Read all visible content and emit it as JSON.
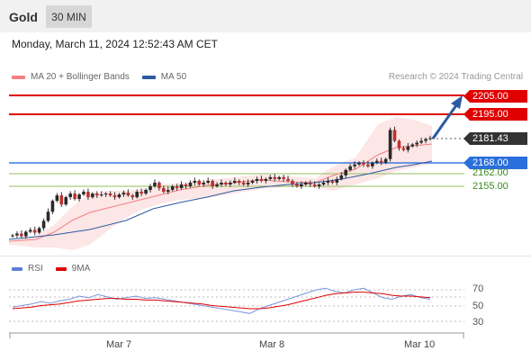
{
  "header": {
    "title": "Gold",
    "timeframe": "30 MIN"
  },
  "datetime": "Monday, March 11, 2024 12:52:43 AM CET",
  "legend": {
    "ma20_label": "MA 20 + Bollinger Bands",
    "ma20_color": "#f08080",
    "ma50_label": "MA 50",
    "ma50_color": "#2c5aa0",
    "credit": "Research © 2024 Trading Central"
  },
  "price_levels": {
    "resistance2": "2205.00",
    "resistance1": "2195.00",
    "current": "2181.43",
    "pivot": "2168.00",
    "support1": "2162.00",
    "support2": "2155.00"
  },
  "rsi_legend": {
    "rsi_label": "RSI",
    "rsi_color": "#5b7fd6",
    "ma_label": "9MA",
    "ma_color": "#e00000"
  },
  "rsi_levels": {
    "high": "70",
    "mid": "50",
    "low": "30"
  },
  "xaxis": {
    "d1": "Mar 7",
    "d2": "Mar 8",
    "d3": "Mar 10"
  },
  "chart_data": {
    "type": "candlestick",
    "price_axis_labels": [
      2205.0,
      2195.0,
      2181.43,
      2168.0,
      2162.0,
      2155.0
    ],
    "close_path": [
      2128.0,
      2129.0,
      2127.5,
      2130.0,
      2131.0,
      2129.5,
      2132.0,
      2136.0,
      2141.0,
      2147.0,
      2150.0,
      2145.0,
      2149.0,
      2151.0,
      2148.0,
      2150.5,
      2152.0,
      2149.0,
      2151.0,
      2150.0,
      2150.5,
      2151.0,
      2150.0,
      2149.0,
      2150.5,
      2151.5,
      2150.0,
      2149.0,
      2152.0,
      2151.0,
      2153.0,
      2155.0,
      2157.0,
      2154.0,
      2152.0,
      2153.0,
      2155.0,
      2154.0,
      2156.0,
      2155.0,
      2157.0,
      2158.0,
      2156.0,
      2157.0,
      2158.0,
      2155.0,
      2156.0,
      2157.0,
      2156.0,
      2157.0,
      2158.0,
      2157.0,
      2156.0,
      2157.0,
      2158.0,
      2159.0,
      2158.0,
      2159.0,
      2160.0,
      2159.0,
      2160.0,
      2159.0,
      2158.0,
      2156.0,
      2155.0,
      2156.0,
      2157.0,
      2156.0,
      2155.0,
      2156.0,
      2157.0,
      2158.0,
      2157.0,
      2159.0,
      2161.0,
      2164.0,
      2166.0,
      2167.0,
      2168.0,
      2167.0,
      2166.0,
      2168.0,
      2169.0,
      2168.0,
      2170.0,
      2186.0,
      2180.0,
      2176.0,
      2175.0,
      2177.0,
      2178.0,
      2179.0,
      2180.0,
      2181.0,
      2181.5
    ],
    "rsi_path": [
      48,
      50,
      52,
      55,
      53,
      56,
      58,
      62,
      60,
      64,
      61,
      58,
      60,
      62,
      59,
      60,
      58,
      56,
      54,
      52,
      50,
      48,
      46,
      44,
      42,
      40,
      46,
      50,
      54,
      58,
      62,
      66,
      70,
      72,
      68,
      66,
      70,
      72,
      66,
      60,
      58,
      62,
      64,
      60,
      58
    ],
    "rsi_ma_path": [
      46,
      47,
      48,
      50,
      51,
      52,
      54,
      56,
      57,
      58,
      59,
      59,
      58,
      58,
      57,
      57,
      56,
      55,
      54,
      53,
      52,
      50,
      49,
      48,
      47,
      46,
      46,
      47,
      49,
      51,
      54,
      57,
      60,
      63,
      65,
      66,
      67,
      67,
      66,
      65,
      63,
      62,
      62,
      61,
      60
    ]
  }
}
